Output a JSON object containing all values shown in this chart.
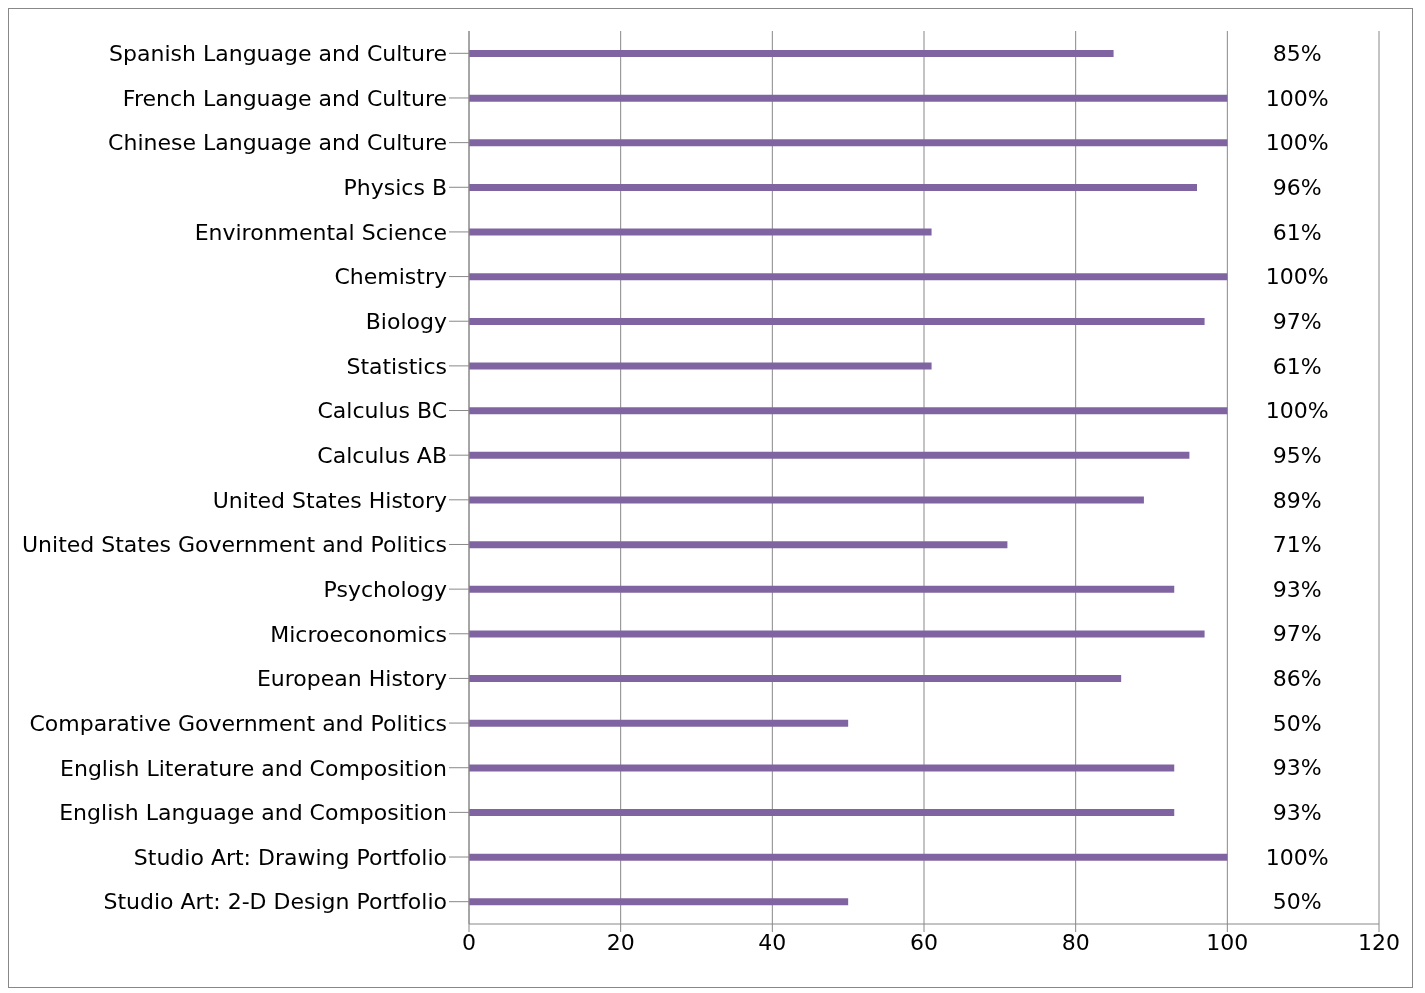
{
  "chart_data": {
    "type": "bar",
    "orientation": "horizontal",
    "categories": [
      "Spanish Language and Culture",
      "French Language and Culture",
      "Chinese Language and Culture",
      "Physics B",
      "Environmental Science",
      "Chemistry",
      "Biology",
      "Statistics",
      "Calculus BC",
      "Calculus AB",
      "United States History",
      "United States Government and Politics",
      "Psychology",
      "Microeconomics",
      "European History",
      "Comparative Government and Politics",
      "English Literature and Composition",
      "English Language and Composition",
      "Studio Art: Drawing Portfolio",
      "Studio Art: 2-D Design Portfolio"
    ],
    "values": [
      85,
      100,
      100,
      96,
      61,
      100,
      97,
      61,
      100,
      95,
      89,
      71,
      93,
      97,
      86,
      50,
      93,
      93,
      100,
      50
    ],
    "value_labels": [
      "85%",
      "100%",
      "100%",
      "96%",
      "61%",
      "100%",
      "97%",
      "61%",
      "100%",
      "95%",
      "89%",
      "71%",
      "93%",
      "97%",
      "86%",
      "50%",
      "93%",
      "93%",
      "100%",
      "50%"
    ],
    "color": "#8064a2",
    "xlim": [
      0,
      120
    ],
    "xticks": [
      0,
      20,
      40,
      60,
      80,
      100,
      120
    ],
    "grid": "x"
  }
}
